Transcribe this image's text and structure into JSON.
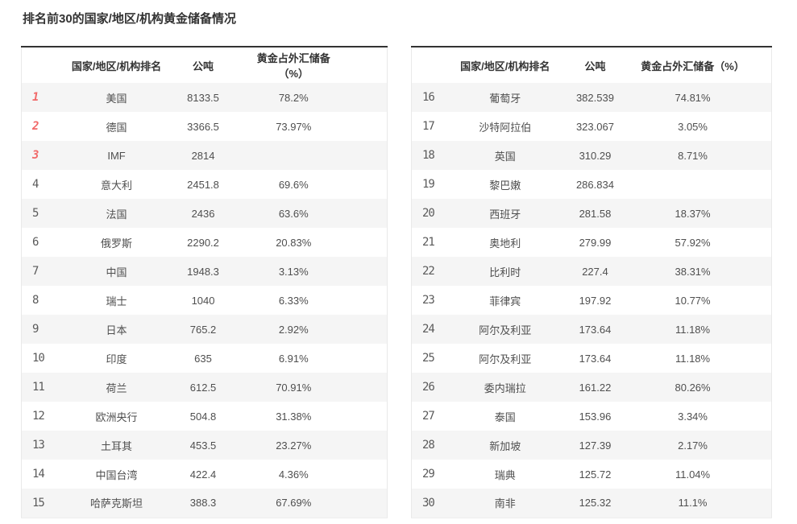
{
  "page": {
    "title": "排名前30的国家/地区/机构黄金储备情况"
  },
  "columns": {
    "rank": "",
    "name": "国家/地区/机构排名",
    "tonnes": "公吨",
    "pct": "黄金占外汇储备（%）"
  },
  "colors": {
    "accent_red": "#f16868",
    "top_border": "#333333",
    "stripe_gray": "#f5f5f5",
    "body_text": "#4f4f4f"
  },
  "tables": [
    {
      "name": "ranks-1-15",
      "rows": [
        {
          "rank": "1",
          "name": "美国",
          "tonnes": "8133.5",
          "pct": "78.2%"
        },
        {
          "rank": "2",
          "name": "德国",
          "tonnes": "3366.5",
          "pct": "73.97%"
        },
        {
          "rank": "3",
          "name": "IMF",
          "tonnes": "2814",
          "pct": ""
        },
        {
          "rank": "4",
          "name": "意大利",
          "tonnes": "2451.8",
          "pct": "69.6%"
        },
        {
          "rank": "5",
          "name": "法国",
          "tonnes": "2436",
          "pct": "63.6%"
        },
        {
          "rank": "6",
          "name": "俄罗斯",
          "tonnes": "2290.2",
          "pct": "20.83%"
        },
        {
          "rank": "7",
          "name": "中国",
          "tonnes": "1948.3",
          "pct": "3.13%"
        },
        {
          "rank": "8",
          "name": "瑞士",
          "tonnes": "1040",
          "pct": "6.33%"
        },
        {
          "rank": "9",
          "name": "日本",
          "tonnes": "765.2",
          "pct": "2.92%"
        },
        {
          "rank": "10",
          "name": "印度",
          "tonnes": "635",
          "pct": "6.91%"
        },
        {
          "rank": "11",
          "name": "荷兰",
          "tonnes": "612.5",
          "pct": "70.91%"
        },
        {
          "rank": "12",
          "name": "欧洲央行",
          "tonnes": "504.8",
          "pct": "31.38%"
        },
        {
          "rank": "13",
          "name": "土耳其",
          "tonnes": "453.5",
          "pct": "23.27%"
        },
        {
          "rank": "14",
          "name": "中国台湾",
          "tonnes": "422.4",
          "pct": "4.36%"
        },
        {
          "rank": "15",
          "name": "哈萨克斯坦",
          "tonnes": "388.3",
          "pct": "67.69%"
        }
      ]
    },
    {
      "name": "ranks-16-30",
      "rows": [
        {
          "rank": "16",
          "name": "葡萄牙",
          "tonnes": "382.539",
          "pct": "74.81%"
        },
        {
          "rank": "17",
          "name": "沙特阿拉伯",
          "tonnes": "323.067",
          "pct": "3.05%"
        },
        {
          "rank": "18",
          "name": "英国",
          "tonnes": "310.29",
          "pct": "8.71%"
        },
        {
          "rank": "19",
          "name": "黎巴嫩",
          "tonnes": "286.834",
          "pct": ""
        },
        {
          "rank": "20",
          "name": "西班牙",
          "tonnes": "281.58",
          "pct": "18.37%"
        },
        {
          "rank": "21",
          "name": "奥地利",
          "tonnes": "279.99",
          "pct": "57.92%"
        },
        {
          "rank": "22",
          "name": "比利时",
          "tonnes": "227.4",
          "pct": "38.31%"
        },
        {
          "rank": "23",
          "name": "菲律宾",
          "tonnes": "197.92",
          "pct": "10.77%"
        },
        {
          "rank": "24",
          "name": "阿尔及利亚",
          "tonnes": "173.64",
          "pct": "11.18%"
        },
        {
          "rank": "25",
          "name": "阿尔及利亚",
          "tonnes": "173.64",
          "pct": "11.18%"
        },
        {
          "rank": "26",
          "name": "委内瑞拉",
          "tonnes": "161.22",
          "pct": "80.26%"
        },
        {
          "rank": "27",
          "name": "泰国",
          "tonnes": "153.96",
          "pct": "3.34%"
        },
        {
          "rank": "28",
          "name": "新加坡",
          "tonnes": "127.39",
          "pct": "2.17%"
        },
        {
          "rank": "29",
          "name": "瑞典",
          "tonnes": "125.72",
          "pct": "11.04%"
        },
        {
          "rank": "30",
          "name": "南非",
          "tonnes": "125.32",
          "pct": "11.1%"
        }
      ]
    }
  ]
}
